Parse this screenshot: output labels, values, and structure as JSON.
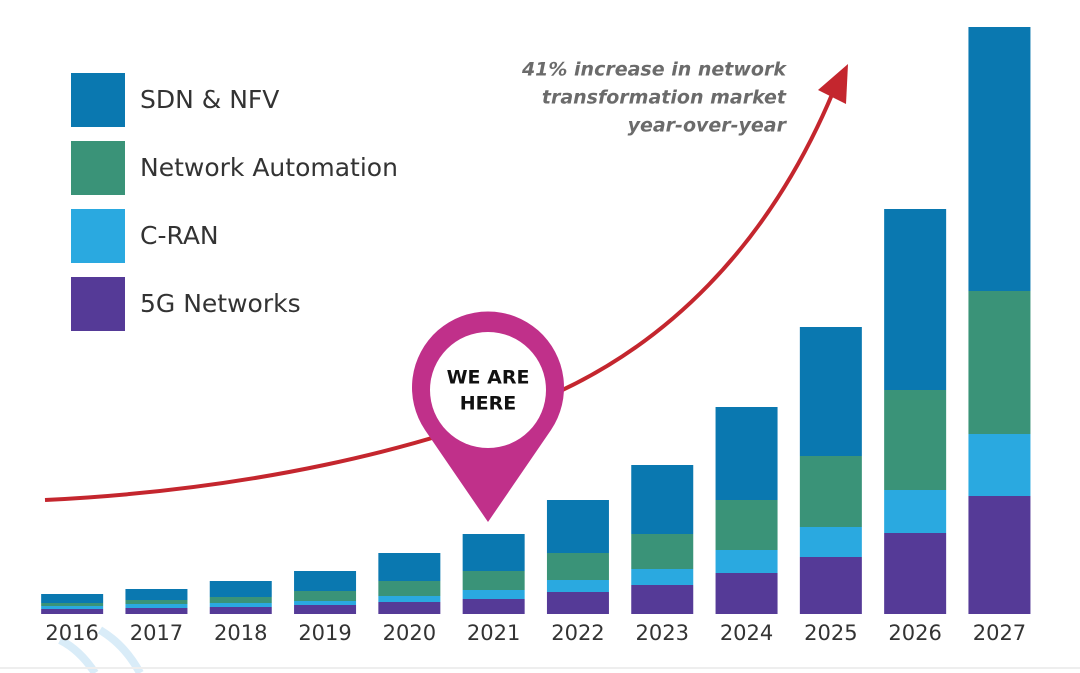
{
  "chart_data": {
    "type": "stacked-bar",
    "categories": [
      "2016",
      "2017",
      "2018",
      "2019",
      "2020",
      "2021",
      "2022",
      "2023",
      "2024",
      "2025",
      "2026",
      "2027"
    ],
    "series": [
      {
        "name": "SDN & NFV",
        "color": "#0a78b0",
        "values": [
          9,
          11,
          16,
          20,
          28,
          37,
          53,
          69,
          93,
          129,
          181,
          264
        ]
      },
      {
        "name": "Network Automation",
        "color": "#3a9378",
        "values": [
          3,
          4,
          6,
          10,
          15,
          19,
          27,
          35,
          50,
          71,
          100,
          143
        ]
      },
      {
        "name": "C-RAN",
        "color": "#2aa9e0",
        "values": [
          3,
          4,
          4,
          4,
          6,
          9,
          12,
          16,
          23,
          30,
          43,
          62
        ]
      },
      {
        "name": "5G Networks",
        "color": "#553a97",
        "values": [
          5,
          6,
          7,
          9,
          12,
          15,
          22,
          29,
          41,
          57,
          81,
          118
        ]
      }
    ],
    "annotation": [
      "41% increase in network",
      "transformation market",
      "year-over-year"
    ],
    "marker_label": [
      "WE ARE",
      "HERE"
    ]
  }
}
